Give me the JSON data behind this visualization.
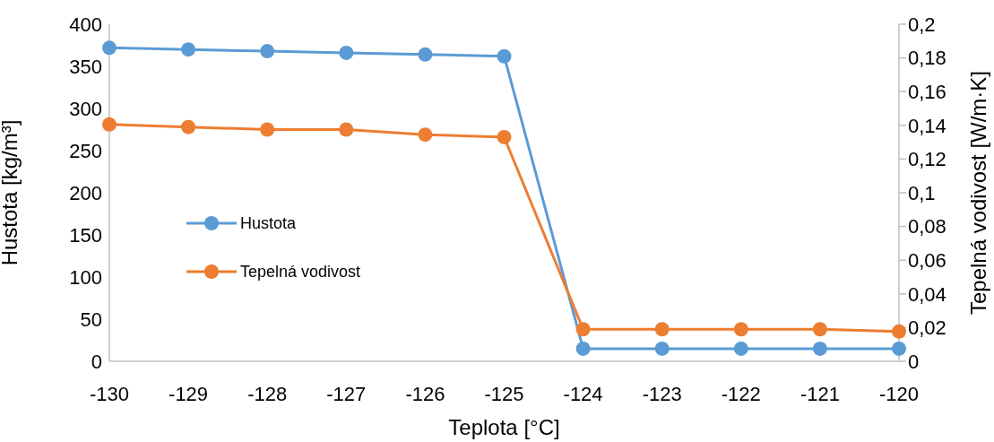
{
  "chart_data": {
    "type": "line",
    "xlabel": "Teplota [°C]",
    "ylabel": "Hustota [kg/m³]",
    "y2label": "Tepelná vodivost [W/m·K]",
    "categories": [
      "-130",
      "-129",
      "-128",
      "-127",
      "-126",
      "-125",
      "-124",
      "-123",
      "-122",
      "-121",
      "-120"
    ],
    "series": [
      {
        "name": "Hustota",
        "color": "#5b9bd5",
        "values": [
          372,
          370,
          368,
          366,
          364,
          362,
          15,
          15,
          15,
          15,
          15
        ]
      },
      {
        "name": "Tepelná vodivost",
        "color": "#ed7d31",
        "axis": "y2",
        "values": [
          0.1405,
          0.139,
          0.1375,
          0.1375,
          0.1345,
          0.133,
          0.019,
          0.019,
          0.019,
          0.019,
          0.0177
        ]
      }
    ],
    "ylim": [
      0,
      400
    ],
    "yticks": [
      0,
      50,
      100,
      150,
      200,
      250,
      300,
      350,
      400
    ],
    "y2lim": [
      0,
      0.2
    ],
    "y2ticks": [
      {
        "value": 0,
        "label": "0"
      },
      {
        "value": 0.02,
        "label": "0,02"
      },
      {
        "value": 0.04,
        "label": "0,04"
      },
      {
        "value": 0.06,
        "label": "0,06"
      },
      {
        "value": 0.08,
        "label": "0,08"
      },
      {
        "value": 0.1,
        "label": "0,1"
      },
      {
        "value": 0.12,
        "label": "0,12"
      },
      {
        "value": 0.14,
        "label": "0,14"
      },
      {
        "value": 0.16,
        "label": "0,16"
      },
      {
        "value": 0.18,
        "label": "0,18"
      },
      {
        "value": 0.2,
        "label": "0,2"
      }
    ],
    "grid": false,
    "legend": "left",
    "marker": "circle",
    "line_style": "solid"
  }
}
